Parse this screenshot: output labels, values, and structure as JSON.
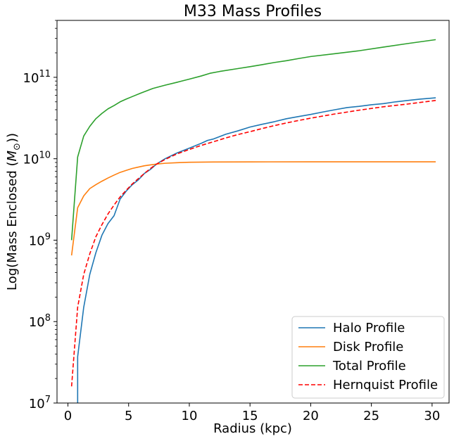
{
  "chart_data": {
    "type": "line",
    "title": "M33 Mass Profiles",
    "xlabel": "Radius (kpc)",
    "ylabel_prefix": "Log(Mass Enclosed (",
    "ylabel_symbol": "M",
    "ylabel_sub": "⊙",
    "ylabel_suffix": "))",
    "xlim": [
      -0.9,
      31.4
    ],
    "ylim": [
      10000000.0,
      500000000000.0
    ],
    "yscale": "log",
    "grid": false,
    "legend_position": "lower-right",
    "x_ticks": [
      0,
      5,
      10,
      15,
      20,
      25,
      30
    ],
    "x_tick_labels": [
      "0",
      "5",
      "10",
      "15",
      "20",
      "25",
      "30"
    ],
    "y_ticks": [
      {
        "value": 10000000.0,
        "base": "10",
        "exp": "7"
      },
      {
        "value": 100000000.0,
        "base": "10",
        "exp": "8"
      },
      {
        "value": 1000000000.0,
        "base": "10",
        "exp": "9"
      },
      {
        "value": 10000000000.0,
        "base": "10",
        "exp": "10"
      },
      {
        "value": 100000000000.0,
        "base": "10",
        "exp": "11"
      }
    ],
    "series": [
      {
        "name": "Halo Profile",
        "color": "#1f77b4",
        "dash": "solid",
        "points": [
          [
            0.8,
            8000000.0
          ],
          [
            0.8,
            37000000.0
          ],
          [
            1.3,
            150000000.0
          ],
          [
            1.8,
            380000000.0
          ],
          [
            2.3,
            700000000.0
          ],
          [
            2.8,
            1150000000.0
          ],
          [
            3.3,
            1600000000.0
          ],
          [
            3.8,
            2000000000.0
          ],
          [
            4.3,
            3200000000.0
          ],
          [
            4.8,
            4000000000.0
          ],
          [
            5.3,
            4800000000.0
          ],
          [
            5.8,
            5500000000.0
          ],
          [
            6.3,
            6600000000.0
          ],
          [
            6.8,
            7400000000.0
          ],
          [
            7.3,
            8600000000.0
          ],
          [
            8,
            10000000000.0
          ],
          [
            9,
            11800000000.0
          ],
          [
            10,
            13500000000.0
          ],
          [
            11,
            15500000000.0
          ],
          [
            11.5,
            16800000000.0
          ],
          [
            12,
            17500000000.0
          ],
          [
            13,
            20000000000.0
          ],
          [
            14,
            22000000000.0
          ],
          [
            15,
            24500000000.0
          ],
          [
            16,
            26500000000.0
          ],
          [
            17,
            28500000000.0
          ],
          [
            18,
            31000000000.0
          ],
          [
            19,
            33000000000.0
          ],
          [
            20,
            35000000000.0
          ],
          [
            21,
            37500000000.0
          ],
          [
            22,
            40000000000.0
          ],
          [
            23,
            42500000000.0
          ],
          [
            24,
            44000000000.0
          ],
          [
            25,
            46000000000.0
          ],
          [
            26,
            47500000000.0
          ],
          [
            27,
            50000000000.0
          ],
          [
            28,
            52000000000.0
          ],
          [
            29,
            54000000000.0
          ],
          [
            30.3,
            56000000000.0
          ]
        ]
      },
      {
        "name": "Disk Profile",
        "color": "#ff7f0e",
        "dash": "solid",
        "points": [
          [
            0.3,
            650000000.0
          ],
          [
            0.8,
            2500000000.0
          ],
          [
            1.3,
            3500000000.0
          ],
          [
            1.8,
            4300000000.0
          ],
          [
            2.3,
            4800000000.0
          ],
          [
            2.8,
            5300000000.0
          ],
          [
            3.3,
            5800000000.0
          ],
          [
            3.8,
            6300000000.0
          ],
          [
            4.3,
            6800000000.0
          ],
          [
            4.8,
            7200000000.0
          ],
          [
            5.3,
            7600000000.0
          ],
          [
            5.8,
            7900000000.0
          ],
          [
            6.3,
            8200000000.0
          ],
          [
            6.8,
            8400000000.0
          ],
          [
            7.3,
            8600000000.0
          ],
          [
            8,
            8800000000.0
          ],
          [
            9,
            8950000000.0
          ],
          [
            10,
            9050000000.0
          ],
          [
            12,
            9120000000.0
          ],
          [
            15,
            9150000000.0
          ],
          [
            20,
            9170000000.0
          ],
          [
            25,
            9170000000.0
          ],
          [
            30.3,
            9170000000.0
          ]
        ]
      },
      {
        "name": "Total Profile",
        "color": "#2ca02c",
        "dash": "solid",
        "points": [
          [
            0.3,
            1000000000.0
          ],
          [
            0.8,
            10500000000.0
          ],
          [
            1.3,
            19000000000.0
          ],
          [
            1.8,
            25000000000.0
          ],
          [
            2.3,
            31000000000.0
          ],
          [
            2.8,
            36000000000.0
          ],
          [
            3.3,
            41000000000.0
          ],
          [
            3.8,
            45000000000.0
          ],
          [
            4.3,
            50000000000.0
          ],
          [
            4.8,
            54000000000.0
          ],
          [
            5.3,
            58000000000.0
          ],
          [
            6,
            64000000000.0
          ],
          [
            7,
            73000000000.0
          ],
          [
            8,
            80000000000.0
          ],
          [
            9,
            87000000000.0
          ],
          [
            10,
            95000000000.0
          ],
          [
            11,
            104000000000.0
          ],
          [
            11.7,
            112000000000.0
          ],
          [
            12.5,
            118000000000.0
          ],
          [
            14,
            128000000000.0
          ],
          [
            15,
            135000000000.0
          ],
          [
            16,
            143000000000.0
          ],
          [
            17,
            152000000000.0
          ],
          [
            18,
            160000000000.0
          ],
          [
            19,
            170000000000.0
          ],
          [
            20,
            180000000000.0
          ],
          [
            22,
            195000000000.0
          ],
          [
            24,
            212000000000.0
          ],
          [
            26,
            235000000000.0
          ],
          [
            28,
            260000000000.0
          ],
          [
            30.3,
            290000000000.0
          ]
        ]
      },
      {
        "name": "Hernquist Profile",
        "color": "#ff0000",
        "dash": "dashed",
        "points": [
          [
            0.3,
            16000000.0
          ],
          [
            0.8,
            150000000.0
          ],
          [
            1.3,
            380000000.0
          ],
          [
            1.8,
            680000000.0
          ],
          [
            2.3,
            1100000000.0
          ],
          [
            2.8,
            1550000000.0
          ],
          [
            3.3,
            2100000000.0
          ],
          [
            3.8,
            2700000000.0
          ],
          [
            4.3,
            3400000000.0
          ],
          [
            4.8,
            4100000000.0
          ],
          [
            5.3,
            4900000000.0
          ],
          [
            5.8,
            5700000000.0
          ],
          [
            6.3,
            6600000000.0
          ],
          [
            6.8,
            7600000000.0
          ],
          [
            7.3,
            8600000000.0
          ],
          [
            8,
            9800000000.0
          ],
          [
            9,
            11500000000.0
          ],
          [
            10,
            13000000000.0
          ],
          [
            11,
            14600000000.0
          ],
          [
            12,
            16200000000.0
          ],
          [
            13,
            18000000000.0
          ],
          [
            14,
            19800000000.0
          ],
          [
            15,
            21500000000.0
          ],
          [
            16,
            23500000000.0
          ],
          [
            17,
            25500000000.0
          ],
          [
            18,
            27500000000.0
          ],
          [
            19,
            29500000000.0
          ],
          [
            20,
            31500000000.0
          ],
          [
            22,
            35500000000.0
          ],
          [
            24,
            39500000000.0
          ],
          [
            26,
            43500000000.0
          ],
          [
            28,
            47000000000.0
          ],
          [
            30.3,
            52000000000.0
          ]
        ]
      }
    ]
  }
}
